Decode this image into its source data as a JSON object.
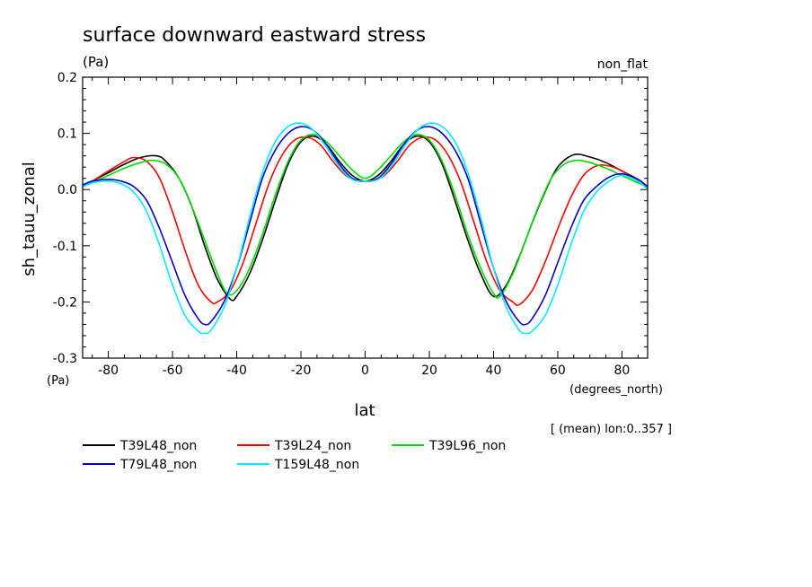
{
  "chart_data": {
    "type": "line",
    "title": "surface downward eastward stress",
    "units_label": "(Pa)",
    "corner_label": "non_flat",
    "ylabel": "sh_tauu_zonal",
    "y_units_label": "(Pa)",
    "xlabel": "lat",
    "x_units_label": "(degrees_north)",
    "note": "[ (mean) lon:0..357 ]",
    "xlim": [
      -88,
      88
    ],
    "ylim": [
      -0.3,
      0.2
    ],
    "x_ticks": [
      -80,
      -60,
      -40,
      -20,
      0,
      20,
      40,
      60,
      80
    ],
    "x_tick_labels": [
      "-80",
      "-60",
      "-40",
      "-20",
      "0",
      "20",
      "40",
      "60",
      "80"
    ],
    "y_ticks": [
      -0.3,
      -0.2,
      -0.1,
      0.0,
      0.1,
      0.2
    ],
    "y_tick_labels": [
      "-0.3",
      "-0.2",
      "-0.1",
      "0.0",
      "0.1",
      "0.2"
    ],
    "grid": false,
    "legend_position": "bottom-left",
    "series": [
      {
        "name": "T39L48_non",
        "color": "#000000",
        "x": [
          -88,
          -85,
          -80,
          -75,
          -70,
          -65,
          -62,
          -58,
          -54,
          -50,
          -46,
          -42,
          -40,
          -36,
          -32,
          -28,
          -24,
          -20,
          -16,
          -12,
          -8,
          -4,
          0,
          4,
          8,
          12,
          16,
          20,
          24,
          28,
          32,
          36,
          40,
          44,
          48,
          52,
          56,
          60,
          65,
          70,
          75,
          80,
          85,
          88
        ],
        "y": [
          0.005,
          0.015,
          0.03,
          0.045,
          0.057,
          0.06,
          0.05,
          0.02,
          -0.03,
          -0.1,
          -0.16,
          -0.195,
          -0.19,
          -0.15,
          -0.09,
          -0.02,
          0.045,
          0.085,
          0.095,
          0.08,
          0.05,
          0.025,
          0.015,
          0.025,
          0.05,
          0.08,
          0.095,
          0.085,
          0.045,
          -0.02,
          -0.09,
          -0.15,
          -0.19,
          -0.17,
          -0.12,
          -0.06,
          -0.005,
          0.04,
          0.062,
          0.058,
          0.048,
          0.033,
          0.018,
          0.005
        ]
      },
      {
        "name": "T39L24_non",
        "color": "#ff0000",
        "x": [
          -88,
          -85,
          -80,
          -75,
          -72,
          -68,
          -64,
          -60,
          -56,
          -52,
          -48,
          -46,
          -42,
          -38,
          -34,
          -30,
          -26,
          -22,
          -18,
          -14,
          -10,
          -6,
          -2,
          0,
          2,
          6,
          10,
          14,
          18,
          22,
          26,
          30,
          34,
          38,
          42,
          46,
          48,
          52,
          56,
          60,
          64,
          68,
          72,
          76,
          80,
          85,
          88
        ],
        "y": [
          0.005,
          0.015,
          0.033,
          0.05,
          0.057,
          0.05,
          0.02,
          -0.04,
          -0.11,
          -0.17,
          -0.2,
          -0.2,
          -0.18,
          -0.13,
          -0.06,
          0.01,
          0.06,
          0.088,
          0.093,
          0.08,
          0.05,
          0.025,
          0.015,
          0.015,
          0.015,
          0.025,
          0.05,
          0.08,
          0.093,
          0.088,
          0.06,
          0.01,
          -0.06,
          -0.13,
          -0.18,
          -0.2,
          -0.205,
          -0.18,
          -0.13,
          -0.07,
          -0.015,
          0.025,
          0.042,
          0.042,
          0.033,
          0.015,
          0.005
        ]
      },
      {
        "name": "T39L96_non",
        "color": "#00dd00",
        "x": [
          -88,
          -85,
          -80,
          -75,
          -70,
          -66,
          -62,
          -58,
          -54,
          -50,
          -46,
          -43,
          -40,
          -36,
          -32,
          -28,
          -24,
          -20,
          -16,
          -12,
          -8,
          -4,
          0,
          4,
          8,
          12,
          16,
          20,
          24,
          28,
          32,
          36,
          40,
          42,
          46,
          50,
          54,
          58,
          62,
          66,
          70,
          75,
          80,
          85,
          88
        ],
        "y": [
          0.005,
          0.012,
          0.025,
          0.038,
          0.048,
          0.052,
          0.045,
          0.02,
          -0.03,
          -0.09,
          -0.15,
          -0.185,
          -0.18,
          -0.14,
          -0.08,
          -0.01,
          0.05,
          0.088,
          0.098,
          0.085,
          0.06,
          0.035,
          0.02,
          0.035,
          0.06,
          0.085,
          0.098,
          0.088,
          0.05,
          -0.01,
          -0.08,
          -0.14,
          -0.185,
          -0.19,
          -0.15,
          -0.09,
          -0.03,
          0.02,
          0.045,
          0.052,
          0.048,
          0.038,
          0.025,
          0.012,
          0.005
        ]
      },
      {
        "name": "T79L48_non",
        "color": "#0000cc",
        "x": [
          -88,
          -85,
          -80,
          -76,
          -72,
          -68,
          -64,
          -60,
          -56,
          -52,
          -50,
          -48,
          -44,
          -40,
          -36,
          -32,
          -28,
          -24,
          -20,
          -16,
          -12,
          -8,
          -4,
          0,
          4,
          8,
          12,
          16,
          20,
          24,
          28,
          32,
          36,
          40,
          44,
          48,
          50,
          52,
          56,
          60,
          64,
          68,
          72,
          76,
          80,
          85,
          88
        ],
        "y": [
          0.008,
          0.015,
          0.018,
          0.015,
          0.005,
          -0.02,
          -0.07,
          -0.13,
          -0.19,
          -0.23,
          -0.24,
          -0.235,
          -0.2,
          -0.14,
          -0.06,
          0.02,
          0.07,
          0.1,
          0.112,
          0.105,
          0.08,
          0.045,
          0.02,
          0.015,
          0.02,
          0.045,
          0.08,
          0.105,
          0.112,
          0.1,
          0.07,
          0.02,
          -0.06,
          -0.14,
          -0.2,
          -0.235,
          -0.24,
          -0.23,
          -0.19,
          -0.13,
          -0.07,
          -0.02,
          0.005,
          0.022,
          0.028,
          0.018,
          0.005
        ]
      },
      {
        "name": "T159L48_non",
        "color": "#00eeff",
        "x": [
          -88,
          -85,
          -80,
          -76,
          -72,
          -68,
          -64,
          -60,
          -56,
          -52,
          -50,
          -48,
          -44,
          -40,
          -36,
          -32,
          -28,
          -24,
          -20,
          -16,
          -12,
          -8,
          -4,
          0,
          4,
          8,
          12,
          16,
          20,
          24,
          28,
          32,
          36,
          40,
          44,
          48,
          50,
          52,
          56,
          60,
          64,
          68,
          72,
          76,
          80,
          85,
          88
        ],
        "y": [
          0.005,
          0.012,
          0.015,
          0.01,
          -0.005,
          -0.04,
          -0.1,
          -0.17,
          -0.225,
          -0.252,
          -0.256,
          -0.25,
          -0.21,
          -0.14,
          -0.05,
          0.03,
          0.085,
          0.112,
          0.118,
          0.105,
          0.075,
          0.04,
          0.018,
          0.015,
          0.018,
          0.04,
          0.075,
          0.105,
          0.118,
          0.112,
          0.085,
          0.03,
          -0.05,
          -0.14,
          -0.21,
          -0.25,
          -0.256,
          -0.252,
          -0.225,
          -0.17,
          -0.1,
          -0.04,
          -0.005,
          0.015,
          0.025,
          0.015,
          0.0
        ]
      }
    ]
  }
}
